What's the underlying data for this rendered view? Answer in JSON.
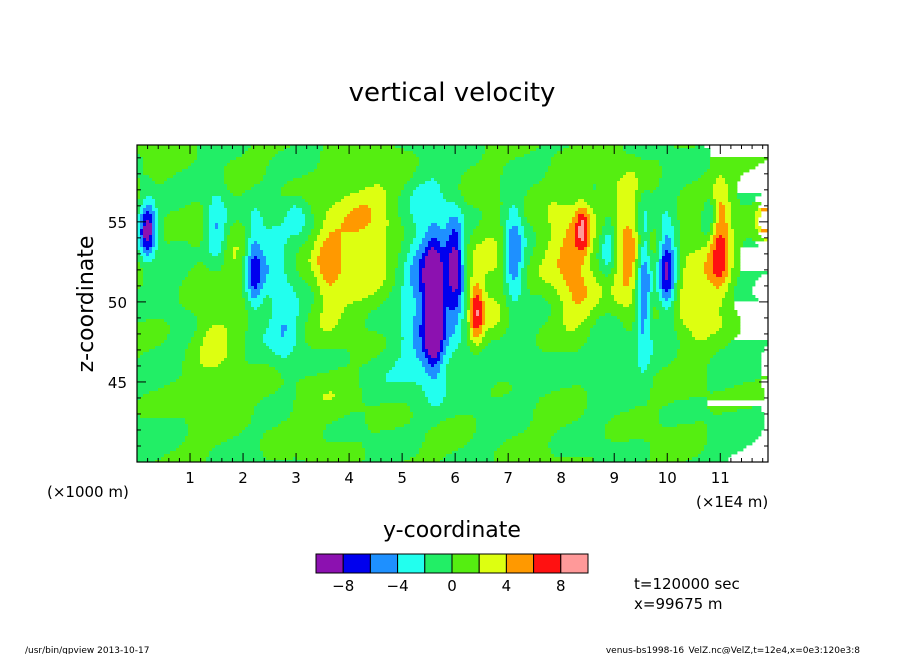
{
  "chart_data": {
    "type": "heatmap",
    "title": "vertical velocity",
    "xlabel": "y-coordinate",
    "ylabel": "z-coordinate",
    "x_unit_left": "(×1000 m)",
    "x_unit_right": "(×1E4 m)",
    "xlim": [
      0,
      11.9
    ],
    "ylim": [
      40,
      59.8
    ],
    "x_ticks": [
      1,
      2,
      3,
      4,
      5,
      6,
      7,
      8,
      9,
      10,
      11
    ],
    "x_tick_labels": [
      "1",
      "2",
      "3",
      "4",
      "5",
      "6",
      "7",
      "8",
      "9",
      "10",
      "11"
    ],
    "y_ticks": [
      45,
      50,
      55
    ],
    "y_tick_labels": [
      "45",
      "50",
      "55"
    ],
    "colorbar": {
      "levels": [
        -10,
        -8,
        -6,
        -4,
        -2,
        0,
        2,
        4,
        6,
        8,
        10
      ],
      "colors": [
        "#8c11b0",
        "#0000ee",
        "#1e90ff",
        "#22ffee",
        "#22ee66",
        "#55ee11",
        "#ddff11",
        "#ff9900",
        "#ff1111",
        "#ff9999"
      ],
      "tick_values": [
        -8,
        -4,
        0,
        4,
        8
      ],
      "tick_labels": [
        "−8",
        "−4",
        "0",
        "4",
        "8"
      ]
    },
    "field_features": [
      {
        "y": 0.2,
        "z": 54.5,
        "sy": 0.12,
        "sz": 1.4,
        "value": -9
      },
      {
        "y": 1.5,
        "z": 54.5,
        "sy": 0.15,
        "sz": 1.8,
        "value": -4.5
      },
      {
        "y": 1.2,
        "z": 53.5,
        "sy": 0.2,
        "sz": 2.0,
        "value": 1.5
      },
      {
        "y": 1.8,
        "z": 51.5,
        "sy": 0.22,
        "sz": 2.5,
        "value": 1.8
      },
      {
        "y": 1.4,
        "z": 48.0,
        "sy": 0.2,
        "sz": 1.5,
        "value": 2.5
      },
      {
        "y": 2.5,
        "z": 53.0,
        "sy": 0.25,
        "sz": 2.5,
        "value": -3
      },
      {
        "y": 2.2,
        "z": 52.0,
        "sy": 0.12,
        "sz": 2.0,
        "value": -6
      },
      {
        "y": 2.8,
        "z": 48.5,
        "sy": 0.2,
        "sz": 2.0,
        "value": -3
      },
      {
        "y": 3.0,
        "z": 55.5,
        "sy": 0.15,
        "sz": 0.8,
        "value": -3
      },
      {
        "y": 3.6,
        "z": 52.0,
        "sy": 0.18,
        "sz": 2.0,
        "value": 3.5
      },
      {
        "y": 4.2,
        "z": 54.0,
        "sy": 0.6,
        "sz": 3.0,
        "value": 3.5
      },
      {
        "y": 5.5,
        "z": 51.0,
        "sy": 0.35,
        "sz": 4.0,
        "value": -6
      },
      {
        "y": 5.6,
        "z": 49.5,
        "sy": 0.12,
        "sz": 2.5,
        "value": -9.5
      },
      {
        "y": 6.0,
        "z": 52.0,
        "sy": 0.12,
        "sz": 2.2,
        "value": -8
      },
      {
        "y": 6.4,
        "z": 49.5,
        "sy": 0.1,
        "sz": 1.5,
        "value": 7
      },
      {
        "y": 6.8,
        "z": 51.0,
        "sy": 0.3,
        "sz": 3.0,
        "value": 2.5
      },
      {
        "y": 7.1,
        "z": 53.0,
        "sy": 0.14,
        "sz": 2.5,
        "value": -6.5
      },
      {
        "y": 8.0,
        "z": 54.0,
        "sy": 0.35,
        "sz": 2.5,
        "value": 3.5
      },
      {
        "y": 8.3,
        "z": 50.5,
        "sy": 0.25,
        "sz": 2.0,
        "value": 3
      },
      {
        "y": 8.4,
        "z": 54.5,
        "sy": 0.1,
        "sz": 1.2,
        "value": 5.5
      },
      {
        "y": 8.9,
        "z": 53.5,
        "sy": 0.12,
        "sz": 1.5,
        "value": -5
      },
      {
        "y": 9.3,
        "z": 53.0,
        "sy": 0.28,
        "sz": 3.0,
        "value": 5.5
      },
      {
        "y": 9.55,
        "z": 51.5,
        "sy": 0.1,
        "sz": 3.0,
        "value": -8
      },
      {
        "y": 10.0,
        "z": 52.0,
        "sy": 0.12,
        "sz": 2.0,
        "value": -8.5
      },
      {
        "y": 10.5,
        "z": 50.0,
        "sy": 0.3,
        "sz": 3.0,
        "value": 3
      },
      {
        "y": 11.0,
        "z": 53.5,
        "sy": 0.15,
        "sz": 2.5,
        "value": 6.5
      },
      {
        "y": 10.8,
        "z": 55.5,
        "sy": 0.1,
        "sz": 1.0,
        "value": -4
      },
      {
        "y": 11.85,
        "z": 55.0,
        "sy": 0.12,
        "sz": 1.0,
        "value": 5.5
      },
      {
        "y": 6.0,
        "z": 46.0,
        "sy": 1.5,
        "sz": 1.5,
        "value": -1.2
      },
      {
        "y": 9.5,
        "z": 47.0,
        "sy": 1.2,
        "sz": 1.5,
        "value": -1
      },
      {
        "y": 3.0,
        "z": 44.0,
        "sy": 1.5,
        "sz": 1.5,
        "value": 0.8
      }
    ]
  },
  "annotations": {
    "time": "t=120000 sec",
    "position": "x=99675  m",
    "footer_left": "/usr/bin/gpview   2013-10-17",
    "footer_right": "venus-bs1998-16_VelZ.nc@VelZ,t=12e4,x=0e3:120e3:8"
  }
}
